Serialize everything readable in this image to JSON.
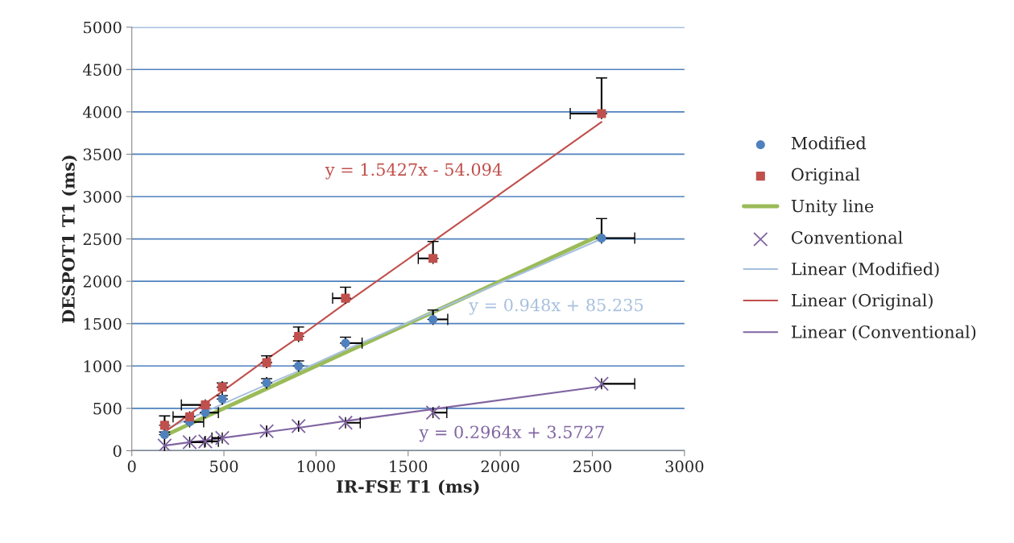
{
  "chart_data": {
    "type": "scatter",
    "xlabel": "IR-FSE T1 (ms)",
    "ylabel": "DESPOT1 T1 (ms)",
    "xlim": [
      0,
      3000
    ],
    "xticks": [
      0,
      500,
      1000,
      1500,
      2000,
      2500,
      3000
    ],
    "ylim": [
      0,
      5000
    ],
    "yticks": [
      0,
      500,
      1000,
      1500,
      2000,
      2500,
      3000,
      3500,
      4000,
      4500,
      5000
    ],
    "grid": "y",
    "legend": "right",
    "x": [
      178,
      314,
      399,
      491,
      732,
      905,
      1160,
      1635,
      2550
    ],
    "series": [
      {
        "name": "Modified",
        "marker": "circle",
        "color": "#4f81bd",
        "values": [
          190,
          340,
          450,
          610,
          800,
          1000,
          1270,
          1550,
          2510
        ],
        "errors": [
          [
            190,
            220
          ],
          null,
          null,
          [
            610,
            650
          ],
          [
            800,
            850
          ],
          [
            1000,
            1060
          ],
          [
            1270,
            1340
          ],
          [
            1550,
            1660
          ],
          [
            2510,
            2740
          ]
        ],
        "xerrors": [
          null,
          [
            314,
            390
          ],
          [
            399,
            470
          ],
          null,
          null,
          null,
          [
            1160,
            1250
          ],
          [
            1635,
            1715
          ],
          [
            2550,
            2730
          ]
        ]
      },
      {
        "name": "Original",
        "marker": "square",
        "color": "#c0504d",
        "values": [
          300,
          400,
          540,
          750,
          1040,
          1350,
          1800,
          2270,
          3980
        ],
        "errors": [
          [
            300,
            410
          ],
          null,
          null,
          [
            750,
            800
          ],
          [
            1040,
            1120
          ],
          [
            1350,
            1460
          ],
          [
            1800,
            1930
          ],
          [
            2270,
            2470
          ],
          [
            3980,
            4400
          ]
        ],
        "xerrors": [
          null,
          [
            224,
            314
          ],
          [
            269,
            399
          ],
          null,
          null,
          null,
          [
            1090,
            1160
          ],
          [
            1555,
            1635
          ],
          [
            2380,
            2550
          ]
        ]
      },
      {
        "name": "Unity line",
        "type": "line",
        "line_style": "solid",
        "color": "#9bbb59",
        "values": [
          178,
          314,
          399,
          491,
          732,
          905,
          1160,
          1635,
          2550
        ]
      },
      {
        "name": "Conventional",
        "marker": "cross",
        "color": "#8064a2",
        "values": [
          60,
          100,
          110,
          150,
          230,
          290,
          330,
          450,
          790
        ],
        "xerrors": [
          null,
          [
            314,
            395
          ],
          [
            399,
            470
          ],
          [
            435,
            491
          ],
          null,
          null,
          [
            1160,
            1240
          ],
          [
            1635,
            1710
          ],
          [
            2550,
            2730
          ]
        ]
      },
      {
        "name": "Linear (Modified)",
        "type": "line",
        "line_style": "solid",
        "color": "#a7c0de",
        "values": [
          250,
          380,
          460,
          550,
          780,
          940,
          1190,
          1640,
          2500
        ]
      },
      {
        "name": "Linear (Original)",
        "type": "line",
        "line_style": "solid",
        "color": "#c0504d",
        "values": [
          220,
          430,
          560,
          700,
          1080,
          1340,
          1740,
          2470,
          3880
        ]
      },
      {
        "name": "Linear (Conventional)",
        "type": "line",
        "line_style": "solid",
        "color": "#8064a2",
        "values": [
          60,
          100,
          120,
          150,
          220,
          270,
          350,
          490,
          760
        ]
      }
    ],
    "annotations": [
      "y = 1.5427x - 54.094",
      "y = 0.948x + 85.235",
      "y = 0.2964x + 3.5727"
    ]
  }
}
